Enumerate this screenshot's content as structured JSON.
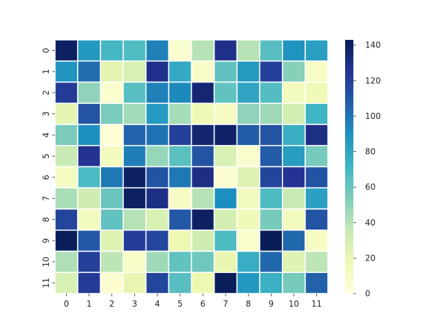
{
  "chart_data": {
    "type": "heatmap",
    "title": "",
    "xlabel": "",
    "ylabel": "",
    "x_categories": [
      "0",
      "1",
      "2",
      "3",
      "4",
      "5",
      "6",
      "7",
      "8",
      "9",
      "10",
      "11"
    ],
    "y_categories": [
      "0",
      "1",
      "2",
      "3",
      "4",
      "5",
      "6",
      "7",
      "8",
      "9",
      "10",
      "11"
    ],
    "values": [
      [
        140,
        86,
        70,
        67,
        95,
        5,
        40,
        128,
        40,
        65,
        88,
        83
      ],
      [
        87,
        102,
        22,
        28,
        128,
        78,
        8,
        62,
        85,
        120,
        52,
        8
      ],
      [
        122,
        50,
        5,
        65,
        95,
        92,
        135,
        62,
        80,
        66,
        12,
        15
      ],
      [
        22,
        112,
        55,
        45,
        85,
        44,
        16,
        10,
        50,
        46,
        30,
        72
      ],
      [
        55,
        90,
        2,
        106,
        100,
        120,
        136,
        138,
        108,
        112,
        75,
        130
      ],
      [
        35,
        126,
        12,
        96,
        48,
        64,
        112,
        28,
        6,
        108,
        84,
        56
      ],
      [
        10,
        68,
        98,
        140,
        112,
        98,
        130,
        4,
        25,
        118,
        125,
        112
      ],
      [
        43,
        32,
        60,
        140,
        130,
        10,
        40,
        90,
        12,
        68,
        35,
        82
      ],
      [
        118,
        12,
        62,
        40,
        28,
        110,
        140,
        30,
        15,
        56,
        12,
        112
      ],
      [
        142,
        110,
        25,
        122,
        118,
        18,
        32,
        68,
        6,
        143,
        104,
        10
      ],
      [
        42,
        120,
        38,
        8,
        46,
        62,
        58,
        20,
        76,
        104,
        24,
        38
      ],
      [
        28,
        122,
        4,
        20,
        118,
        65,
        18,
        142,
        86,
        74,
        56,
        106
      ]
    ],
    "colorbar": {
      "min": 0,
      "max": 143,
      "ticks": [
        0,
        20,
        40,
        60,
        80,
        100,
        120,
        140
      ],
      "colormap": "YlGnBu"
    },
    "grid": false,
    "legend": "colorbar-right"
  }
}
